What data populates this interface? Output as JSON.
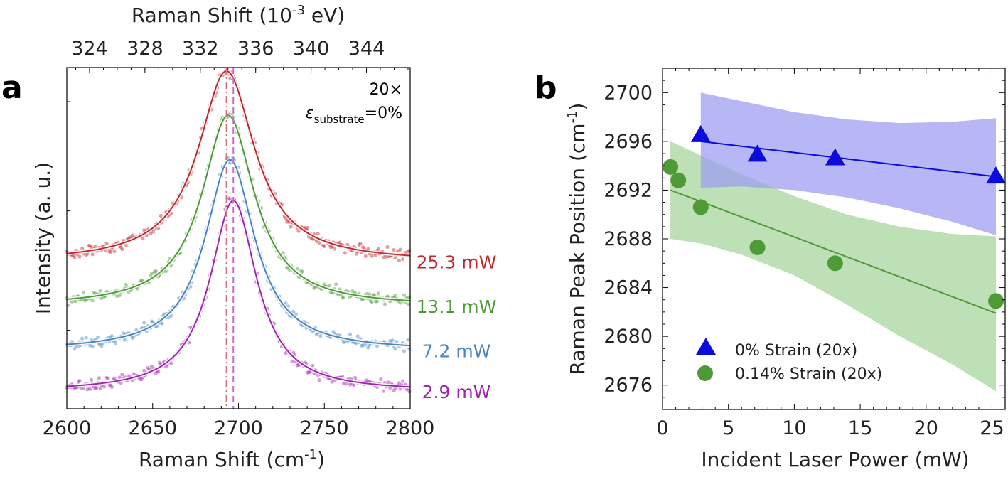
{
  "chart_data": [
    {
      "panel_label": "a",
      "type": "line",
      "xlabel": "Raman Shift (cm",
      "xlabel_sup": "-1",
      "xlabel_tail": ")",
      "ylabel": "Intensity (a. u.)",
      "top_xlabel": "Raman Shift (10",
      "top_xlabel_sup": "-3",
      "top_xlabel_tail": " eV)",
      "xlim": [
        2600,
        2800
      ],
      "xticks": [
        "2600",
        "2650",
        "2700",
        "2750",
        "2800"
      ],
      "top_xticks": [
        "324",
        "328",
        "332",
        "336",
        "340",
        "344"
      ],
      "top_xticks_values": [
        324,
        328,
        332,
        336,
        340,
        344
      ],
      "annotation_line1": "20×",
      "annotation_symbol": "ε",
      "annotation_sub": "substrate",
      "annotation_tail": "=0%",
      "reference_lines": [
        {
          "x": 2693,
          "color": "#d9707f",
          "style": "dash-dot"
        },
        {
          "x": 2697,
          "color": "#c86ad6",
          "style": "dashed"
        }
      ],
      "series": [
        {
          "name": "25.3 mW",
          "color": "#c0282e",
          "center": 2693,
          "fwhm": 40,
          "baseline": 0.43,
          "amplitude": 0.56
        },
        {
          "name": "13.1 mW",
          "color": "#4e9a37",
          "center": 2694,
          "fwhm": 37,
          "baseline": 0.3,
          "amplitude": 0.56
        },
        {
          "name": "7.2 mW",
          "color": "#4a85bf",
          "center": 2695,
          "fwhm": 35,
          "baseline": 0.17,
          "amplitude": 0.56
        },
        {
          "name": "2.9 mW",
          "color": "#a024b0",
          "center": 2697,
          "fwhm": 33,
          "baseline": 0.05,
          "amplitude": 0.56
        }
      ]
    },
    {
      "panel_label": "b",
      "type": "scatter",
      "xlabel": "Incident Laser Power (mW)",
      "ylabel": "Raman Peak Position (cm",
      "ylabel_sup": "-1",
      "ylabel_tail": ")",
      "xlim": [
        0,
        26
      ],
      "ylim": [
        2674,
        2702
      ],
      "xticks": [
        "0",
        "5",
        "10",
        "15",
        "20",
        "25"
      ],
      "xticks_values": [
        0,
        5,
        10,
        15,
        20,
        25
      ],
      "yticks": [
        "2676",
        "2680",
        "2684",
        "2688",
        "2692",
        "2696",
        "2700"
      ],
      "yticks_values": [
        2676,
        2680,
        2684,
        2688,
        2692,
        2696,
        2700
      ],
      "legend_position": "bottom-left",
      "series": [
        {
          "name": "0% Strain (20x)",
          "marker": "triangle",
          "color": "#0b0bdc",
          "band_color": "#9b9bf2",
          "x": [
            2.9,
            7.2,
            13.1,
            25.3
          ],
          "y": [
            2696.5,
            2694.9,
            2694.6,
            2693.1
          ],
          "fit": {
            "x": [
              2.9,
              25.3
            ],
            "y": [
              2696.0,
              2693.1
            ]
          },
          "band": {
            "x": [
              2.9,
              6,
              10,
              14,
              18,
              22,
              25.3
            ],
            "upper": [
              2700.0,
              2699.3,
              2698.4,
              2697.8,
              2697.5,
              2697.6,
              2697.9
            ],
            "lower": [
              2692.2,
              2692.3,
              2692.0,
              2691.4,
              2690.5,
              2689.4,
              2688.3
            ]
          }
        },
        {
          "name": "0.14% Strain (20x)",
          "marker": "circle",
          "color": "#4e9a37",
          "band_color": "#a5d49a",
          "x": [
            0.6,
            1.2,
            2.9,
            7.2,
            13.1,
            25.3
          ],
          "y": [
            2693.9,
            2692.8,
            2690.6,
            2687.3,
            2686.0,
            2682.9
          ],
          "fit": {
            "x": [
              0.6,
              25.3
            ],
            "y": [
              2692.0,
              2681.9
            ]
          },
          "band": {
            "x": [
              0.6,
              3,
              6,
              10,
              14,
              18,
              22,
              25.3
            ],
            "upper": [
              2696.0,
              2694.8,
              2693.3,
              2691.5,
              2690.0,
              2689.0,
              2688.4,
              2688.2
            ],
            "lower": [
              2688.0,
              2687.6,
              2686.7,
              2685.0,
              2682.6,
              2680.0,
              2677.7,
              2675.5
            ]
          }
        }
      ]
    }
  ]
}
